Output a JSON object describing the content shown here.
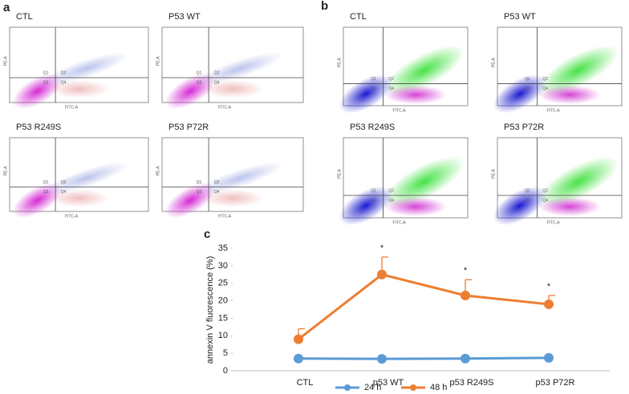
{
  "panels": {
    "a": {
      "label": "a",
      "x_label": "FITC-A",
      "y_label": "PE-A",
      "quadrants": [
        "Q1",
        "Q2",
        "Q3",
        "Q4"
      ],
      "plots": [
        {
          "title": "CTL"
        },
        {
          "title": "P53 WT"
        },
        {
          "title": "P53 R249S"
        },
        {
          "title": "P53 P72R"
        }
      ]
    },
    "b": {
      "label": "b",
      "x_label": "FITC-A",
      "y_label": "PE-A",
      "quadrants": [
        "Q1",
        "Q2",
        "Q3",
        "Q4"
      ],
      "plots": [
        {
          "title": "CTL"
        },
        {
          "title": "P53 WT"
        },
        {
          "title": "P53 R249S"
        },
        {
          "title": "P53 P72R"
        }
      ]
    }
  },
  "chart_data": {
    "type": "line",
    "panel_label": "c",
    "y_label": "annexin V fluorescence (%)",
    "categories": [
      "CTL",
      "p53 WT",
      "p53 R249S",
      "p53 P72R"
    ],
    "ylim": [
      0,
      35
    ],
    "yticks": [
      0,
      5,
      10,
      15,
      20,
      25,
      30,
      35
    ],
    "legend": "bottom",
    "series": [
      {
        "name": "24 h",
        "color": "#5b9bd5",
        "values": [
          3.5,
          3.4,
          3.5,
          3.7
        ]
      },
      {
        "name": "48 h",
        "color": "#ed7d31",
        "values": [
          9,
          27.5,
          21.5,
          19
        ],
        "errors": [
          3,
          5,
          4.5,
          2.5
        ],
        "annotations": [
          null,
          "*",
          "*",
          "*"
        ]
      }
    ]
  }
}
